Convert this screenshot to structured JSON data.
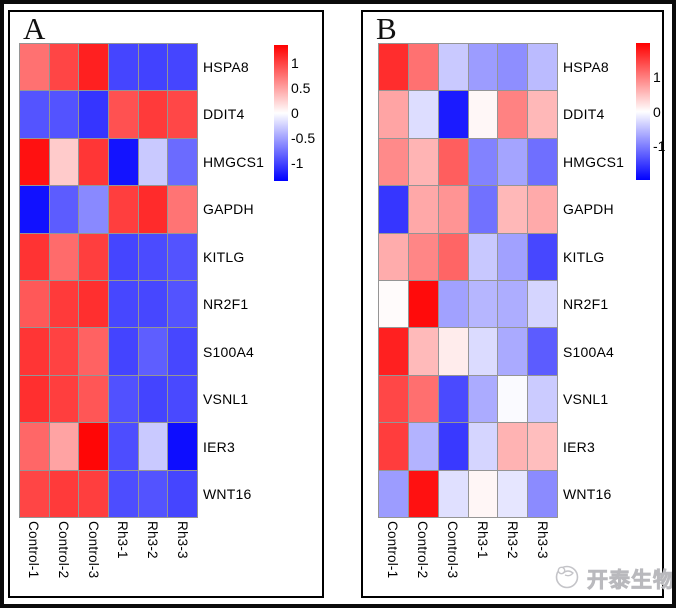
{
  "watermark": {
    "text": "开泰生物",
    "logo": "bird-circle-logo"
  },
  "colors": {
    "frame_border": "#0a0a0a",
    "panel_border": "#000000",
    "grid_line": "#959595",
    "watermark_gray": "#c4c4c8"
  },
  "chart_data": [
    {
      "type": "heatmap",
      "panel_label": "A",
      "rows": [
        "HSPA8",
        "DDIT4",
        "HMGCS1",
        "GAPDH",
        "KITLG",
        "NR2F1",
        "S100A4",
        "VSNL1",
        "IER3",
        "WNT16"
      ],
      "columns": [
        "Control-1",
        "Control-2",
        "Control-3",
        "Rh3-1",
        "Rh3-2",
        "Rh3-3"
      ],
      "values": [
        [
          0.76,
          0.99,
          1.19,
          -0.99,
          -1.01,
          -0.99
        ],
        [
          -0.91,
          -0.92,
          -1.08,
          0.93,
          1.05,
          0.98
        ],
        [
          1.27,
          0.28,
          1.07,
          -1.26,
          -0.29,
          -0.79
        ],
        [
          -1.27,
          -0.87,
          -0.63,
          1.03,
          1.13,
          0.74
        ],
        [
          1.09,
          0.79,
          1.03,
          -0.99,
          -0.96,
          -0.92
        ],
        [
          0.89,
          1.05,
          1.11,
          -0.98,
          -0.98,
          -0.92
        ],
        [
          1.08,
          1.01,
          0.84,
          -1.0,
          -0.86,
          -0.98
        ],
        [
          1.11,
          1.03,
          0.9,
          -0.93,
          -1.0,
          -0.97
        ],
        [
          0.81,
          0.49,
          1.33,
          -0.95,
          -0.29,
          -1.29
        ],
        [
          0.99,
          1.05,
          1.03,
          -0.95,
          -0.92,
          -0.99
        ]
      ],
      "colorscale": {
        "tick_labels": [
          "1",
          "0.5",
          "0",
          "-0.5",
          "-1"
        ],
        "tick_values": [
          1,
          0.5,
          0,
          -0.5,
          -1
        ],
        "vmax": 1.36,
        "top_color": "#ff0000",
        "mid_color": "#ffffff",
        "bottom_color": "#0000ff"
      },
      "legend_position": "right",
      "xlabel": "",
      "ylabel": ""
    },
    {
      "type": "heatmap",
      "panel_label": "B",
      "rows": [
        "HSPA8",
        "DDIT4",
        "HMGCS1",
        "GAPDH",
        "KITLG",
        "NR2F1",
        "S100A4",
        "VSNL1",
        "IER3",
        "WNT16"
      ],
      "columns": [
        "Control-1",
        "Control-2",
        "Control-3",
        "Rh3-1",
        "Rh3-2",
        "Rh3-3"
      ],
      "values": [
        [
          1.65,
          1.11,
          -0.42,
          -0.78,
          -0.89,
          -0.53
        ],
        [
          0.71,
          -0.27,
          -1.79,
          0.06,
          0.98,
          0.56
        ],
        [
          0.92,
          0.59,
          1.26,
          -0.98,
          -0.71,
          -1.13
        ],
        [
          -1.58,
          0.68,
          0.84,
          -1.11,
          0.56,
          0.67
        ],
        [
          0.65,
          0.95,
          1.21,
          -0.43,
          -0.74,
          -1.44
        ],
        [
          0.03,
          1.91,
          -0.74,
          -0.57,
          -0.64,
          -0.33
        ],
        [
          1.75,
          0.54,
          0.15,
          -0.28,
          -0.67,
          -1.28
        ],
        [
          1.44,
          1.13,
          -1.42,
          -0.66,
          -0.04,
          -0.41
        ],
        [
          1.52,
          -0.6,
          -1.55,
          -0.33,
          0.6,
          0.51
        ],
        [
          -0.78,
          1.87,
          -0.24,
          0.07,
          -0.2,
          -0.91
        ]
      ],
      "colorscale": {
        "tick_labels": [
          "1",
          "0",
          "-1"
        ],
        "tick_values": [
          1,
          0,
          -1
        ],
        "vmax": 2.0,
        "top_color": "#ff0000",
        "mid_color": "#ffffff",
        "bottom_color": "#0000ff"
      },
      "legend_position": "right",
      "xlabel": "",
      "ylabel": ""
    }
  ]
}
